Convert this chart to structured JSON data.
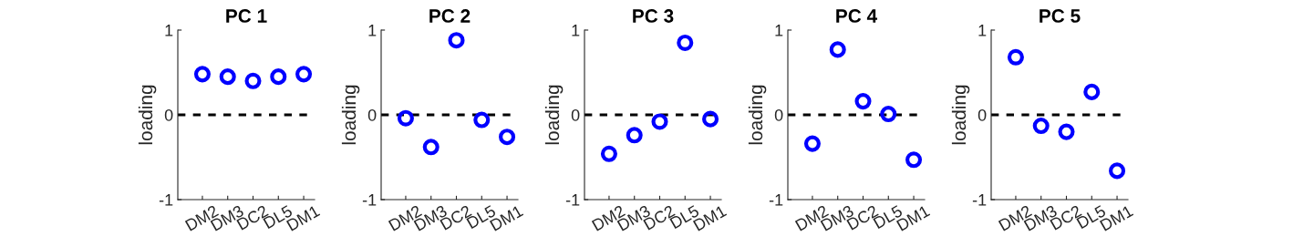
{
  "chart_data": [
    {
      "type": "scatter",
      "title": "PC 1",
      "ylabel": "loading",
      "categories": [
        "DM2",
        "DM3",
        "DC2",
        "DL5",
        "DM1"
      ],
      "series": [
        {
          "color": "#0000ff",
          "values": [
            0.48,
            0.45,
            0.4,
            0.45,
            0.48
          ]
        }
      ],
      "ylim": [
        -1,
        1
      ],
      "yticks": [
        -1,
        0,
        1
      ],
      "marker": "circle",
      "ref_lines": [
        {
          "axis": "y",
          "value": 0,
          "color": "#000000",
          "line_style": "dashed"
        }
      ]
    },
    {
      "type": "scatter",
      "title": "PC 2",
      "ylabel": "loading",
      "categories": [
        "DM2",
        "DM3",
        "DC2",
        "DL5",
        "DM1"
      ],
      "series": [
        {
          "color": "#0000ff",
          "values": [
            -0.04,
            -0.38,
            0.88,
            -0.06,
            -0.26
          ]
        }
      ],
      "ylim": [
        -1,
        1
      ],
      "yticks": [
        -1,
        0,
        1
      ],
      "marker": "circle",
      "ref_lines": [
        {
          "axis": "y",
          "value": 0,
          "color": "#000000",
          "line_style": "dashed"
        }
      ]
    },
    {
      "type": "scatter",
      "title": "PC 3",
      "ylabel": "loading",
      "categories": [
        "DM2",
        "DM3",
        "DC2",
        "DL5",
        "DM1"
      ],
      "series": [
        {
          "color": "#0000ff",
          "values": [
            -0.46,
            -0.24,
            -0.08,
            0.85,
            -0.05
          ]
        }
      ],
      "ylim": [
        -1,
        1
      ],
      "yticks": [
        -1,
        0,
        1
      ],
      "marker": "circle",
      "ref_lines": [
        {
          "axis": "y",
          "value": 0,
          "color": "#000000",
          "line_style": "dashed"
        }
      ]
    },
    {
      "type": "scatter",
      "title": "PC 4",
      "ylabel": "loading",
      "categories": [
        "DM2",
        "DM3",
        "DC2",
        "DL5",
        "DM1"
      ],
      "series": [
        {
          "color": "#0000ff",
          "values": [
            -0.34,
            0.77,
            0.16,
            0.01,
            -0.53
          ]
        }
      ],
      "ylim": [
        -1,
        1
      ],
      "yticks": [
        -1,
        0,
        1
      ],
      "marker": "circle",
      "ref_lines": [
        {
          "axis": "y",
          "value": 0,
          "color": "#000000",
          "line_style": "dashed"
        }
      ]
    },
    {
      "type": "scatter",
      "title": "PC 5",
      "ylabel": "loading",
      "categories": [
        "DM2",
        "DM3",
        "DC2",
        "DL5",
        "DM1"
      ],
      "series": [
        {
          "color": "#0000ff",
          "values": [
            0.68,
            -0.13,
            -0.2,
            0.27,
            -0.66
          ]
        }
      ],
      "ylim": [
        -1,
        1
      ],
      "yticks": [
        -1,
        0,
        1
      ],
      "marker": "circle",
      "ref_lines": [
        {
          "axis": "y",
          "value": 0,
          "color": "#000000",
          "line_style": "dashed"
        }
      ]
    }
  ]
}
